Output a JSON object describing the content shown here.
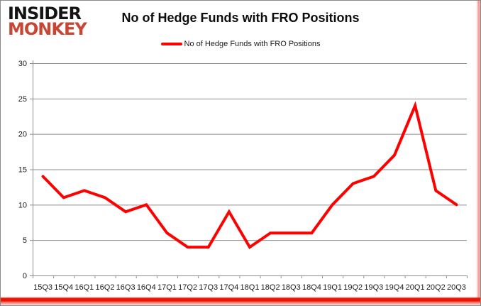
{
  "logo": {
    "line1": "INSIDER",
    "line2": "MONKEY",
    "color_top": "#141414",
    "color_bottom": "#c74634"
  },
  "title": "No of Hedge Funds with FRO Positions",
  "legend": {
    "label": "No of Hedge Funds with FRO Positions",
    "marker_color": "#ff0000"
  },
  "accents": {
    "border_gray": "#8a8a8a",
    "bottom_red": "#ee1404",
    "side_pink": "#f0988e"
  },
  "chart_data": {
    "type": "line",
    "title": "No of Hedge Funds with FRO Positions",
    "categories": [
      "15Q3",
      "15Q4",
      "16Q1",
      "16Q2",
      "16Q3",
      "16Q4",
      "17Q1",
      "17Q2",
      "17Q3",
      "17Q4",
      "18Q1",
      "18Q2",
      "18Q3",
      "18Q4",
      "19Q1",
      "19Q2",
      "19Q3",
      "19Q4",
      "20Q1",
      "20Q2",
      "20Q3"
    ],
    "series": [
      {
        "name": "No of Hedge Funds with FRO Positions",
        "color": "#ff0000",
        "values": [
          14,
          11,
          12,
          11,
          9,
          10,
          6,
          4,
          4,
          9,
          4,
          6,
          6,
          6,
          10,
          13,
          14,
          17,
          24,
          12,
          10
        ]
      }
    ],
    "xlabel": "",
    "ylabel": "",
    "ylim": [
      0,
      30
    ],
    "yticks": [
      0,
      5,
      10,
      15,
      20,
      25,
      30
    ],
    "grid": "horizontal",
    "grid_color": "#8c8c8c",
    "axis_color": "#8c8c8c",
    "tick_label_color": "#1a1a1a",
    "legend_position": "top-center"
  }
}
